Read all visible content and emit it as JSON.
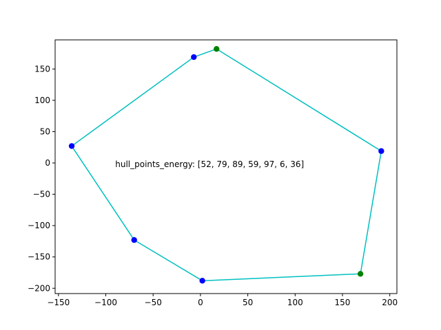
{
  "chart_data": {
    "type": "line",
    "title": "",
    "xlabel": "",
    "ylabel": "",
    "xlim": [
      -153.5,
      207.5
    ],
    "ylim": [
      -208.5,
      196.5
    ],
    "xticks": [
      -150,
      -100,
      -50,
      0,
      50,
      100,
      150,
      200
    ],
    "yticks": [
      -200,
      -150,
      -100,
      -50,
      0,
      50,
      100,
      150
    ],
    "grid": false,
    "hull_points": [
      {
        "x": 17,
        "y": 182,
        "color": "#008000"
      },
      {
        "x": -7,
        "y": 169,
        "color": "#0000ff"
      },
      {
        "x": -136,
        "y": 27,
        "color": "#0000ff"
      },
      {
        "x": -70,
        "y": -123,
        "color": "#0000ff"
      },
      {
        "x": 2,
        "y": -188,
        "color": "#0000ff"
      },
      {
        "x": 169,
        "y": -177,
        "color": "#008000"
      },
      {
        "x": 191,
        "y": 19,
        "color": "#0000ff"
      }
    ],
    "line_color": "#00bfbf",
    "annotation": {
      "text": "hull_points_energy: [52, 79, 89, 59, 97, 6, 36]",
      "x": -90,
      "y": 0
    }
  }
}
